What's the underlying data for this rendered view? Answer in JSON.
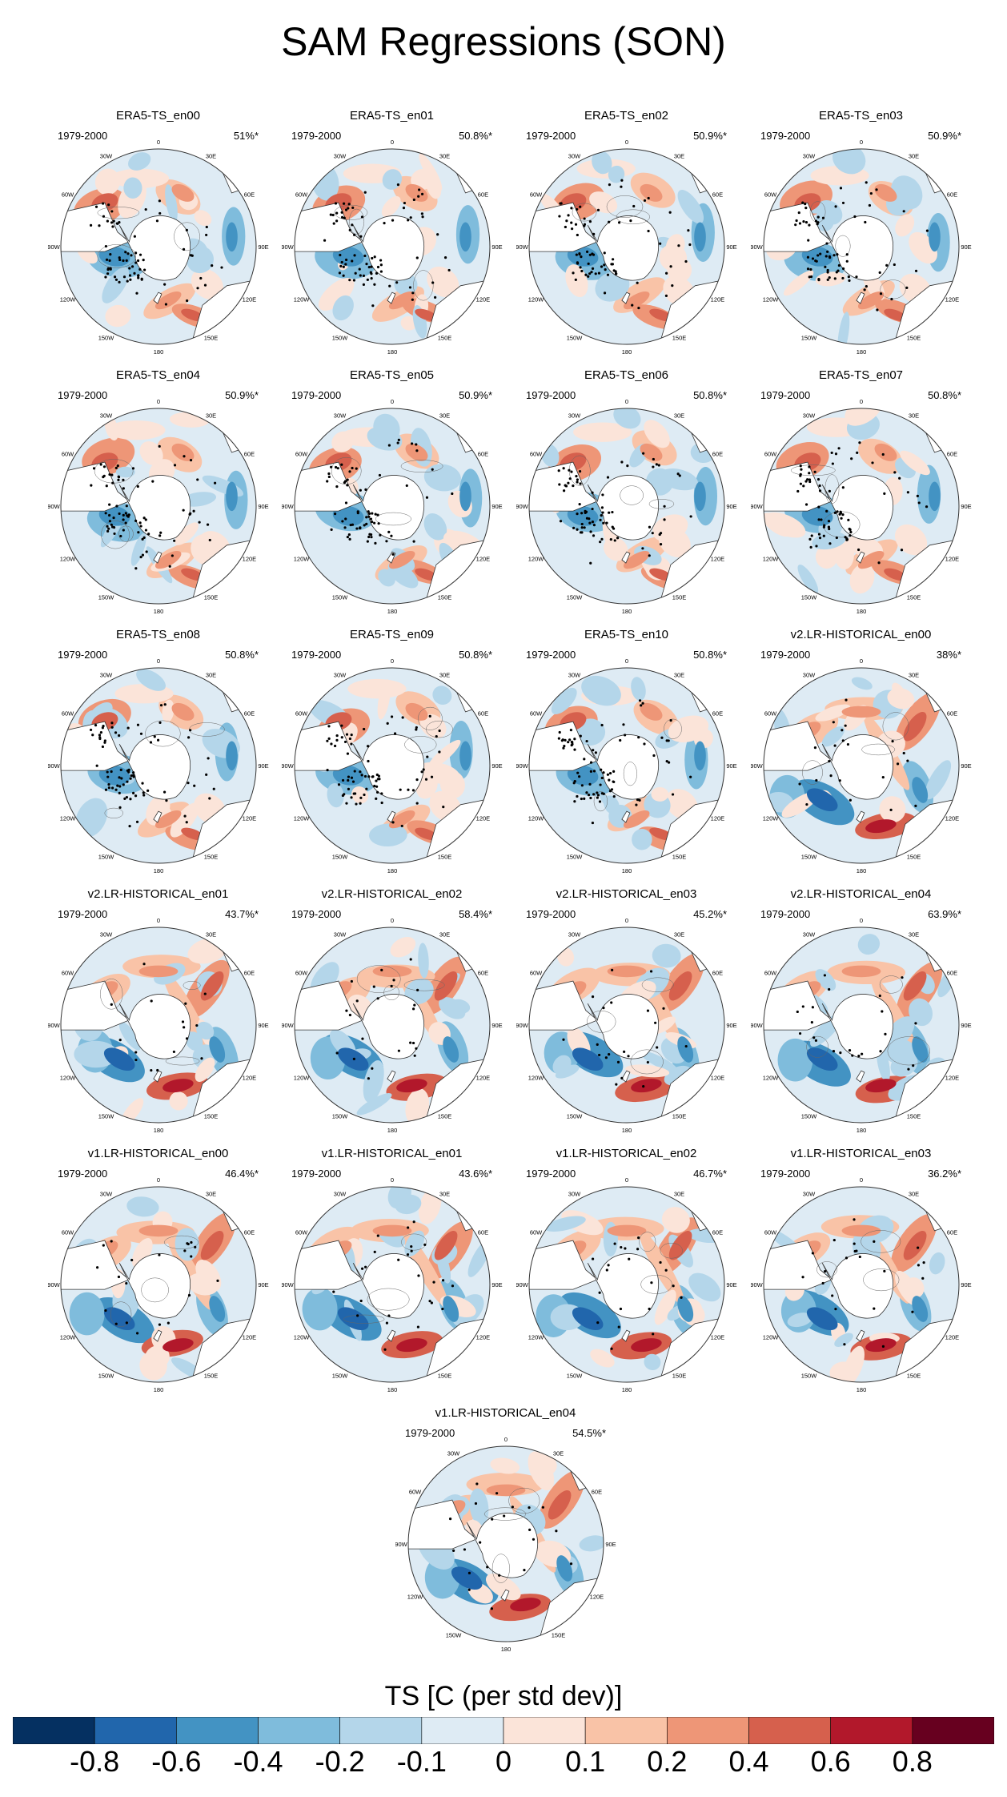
{
  "title": "SAM Regressions (SON)",
  "map_labels": {
    "lon": [
      "0",
      "30E",
      "60E",
      "90E",
      "120E",
      "150E",
      "180",
      "150W",
      "120W",
      "90W",
      "60W",
      "30W"
    ]
  },
  "panels": [
    {
      "title": "ERA5-TS_en00",
      "years": "1979-2000",
      "pct": "51%*",
      "variant": "obs",
      "seed": 11
    },
    {
      "title": "ERA5-TS_en01",
      "years": "1979-2000",
      "pct": "50.8%*",
      "variant": "obs",
      "seed": 12
    },
    {
      "title": "ERA5-TS_en02",
      "years": "1979-2000",
      "pct": "50.9%*",
      "variant": "obs",
      "seed": 13
    },
    {
      "title": "ERA5-TS_en03",
      "years": "1979-2000",
      "pct": "50.9%*",
      "variant": "obs",
      "seed": 14
    },
    {
      "title": "ERA5-TS_en04",
      "years": "1979-2000",
      "pct": "50.9%*",
      "variant": "obs",
      "seed": 15
    },
    {
      "title": "ERA5-TS_en05",
      "years": "1979-2000",
      "pct": "50.9%*",
      "variant": "obs",
      "seed": 16
    },
    {
      "title": "ERA5-TS_en06",
      "years": "1979-2000",
      "pct": "50.8%*",
      "variant": "obs",
      "seed": 17
    },
    {
      "title": "ERA5-TS_en07",
      "years": "1979-2000",
      "pct": "50.8%*",
      "variant": "obs",
      "seed": 18
    },
    {
      "title": "ERA5-TS_en08",
      "years": "1979-2000",
      "pct": "50.8%*",
      "variant": "obs",
      "seed": 19
    },
    {
      "title": "ERA5-TS_en09",
      "years": "1979-2000",
      "pct": "50.8%*",
      "variant": "obs",
      "seed": 20
    },
    {
      "title": "ERA5-TS_en10",
      "years": "1979-2000",
      "pct": "50.8%*",
      "variant": "obs",
      "seed": 21
    },
    {
      "title": "v2.LR-HISTORICAL_en00",
      "years": "1979-2000",
      "pct": "38%*",
      "variant": "model",
      "seed": 31
    },
    {
      "title": "v2.LR-HISTORICAL_en01",
      "years": "1979-2000",
      "pct": "43.7%*",
      "variant": "model",
      "seed": 32
    },
    {
      "title": "v2.LR-HISTORICAL_en02",
      "years": "1979-2000",
      "pct": "58.4%*",
      "variant": "model",
      "seed": 33
    },
    {
      "title": "v2.LR-HISTORICAL_en03",
      "years": "1979-2000",
      "pct": "45.2%*",
      "variant": "model",
      "seed": 34
    },
    {
      "title": "v2.LR-HISTORICAL_en04",
      "years": "1979-2000",
      "pct": "63.9%*",
      "variant": "model",
      "seed": 35
    },
    {
      "title": "v1.LR-HISTORICAL_en00",
      "years": "1979-2000",
      "pct": "46.4%*",
      "variant": "model",
      "seed": 41
    },
    {
      "title": "v1.LR-HISTORICAL_en01",
      "years": "1979-2000",
      "pct": "43.6%*",
      "variant": "model",
      "seed": 42
    },
    {
      "title": "v1.LR-HISTORICAL_en02",
      "years": "1979-2000",
      "pct": "46.7%*",
      "variant": "model",
      "seed": 43
    },
    {
      "title": "v1.LR-HISTORICAL_en03",
      "years": "1979-2000",
      "pct": "36.2%*",
      "variant": "model",
      "seed": 44
    },
    {
      "title": "v1.LR-HISTORICAL_en04",
      "years": "1979-2000",
      "pct": "54.5%*",
      "variant": "model",
      "seed": 45
    }
  ],
  "colorbar": {
    "title": "TS [C (per std dev)]",
    "colors": [
      "#053061",
      "#2166ac",
      "#4393c3",
      "#7fbcdc",
      "#b4d6ea",
      "#deebf4",
      "#fbe4d9",
      "#f9c3a7",
      "#ee9677",
      "#d6604d",
      "#b2182b",
      "#67001f"
    ],
    "labels": [
      "-0.8",
      "-0.6",
      "-0.4",
      "-0.2",
      "-0.1",
      "0",
      "0.1",
      "0.2",
      "0.4",
      "0.6",
      "0.8"
    ]
  }
}
